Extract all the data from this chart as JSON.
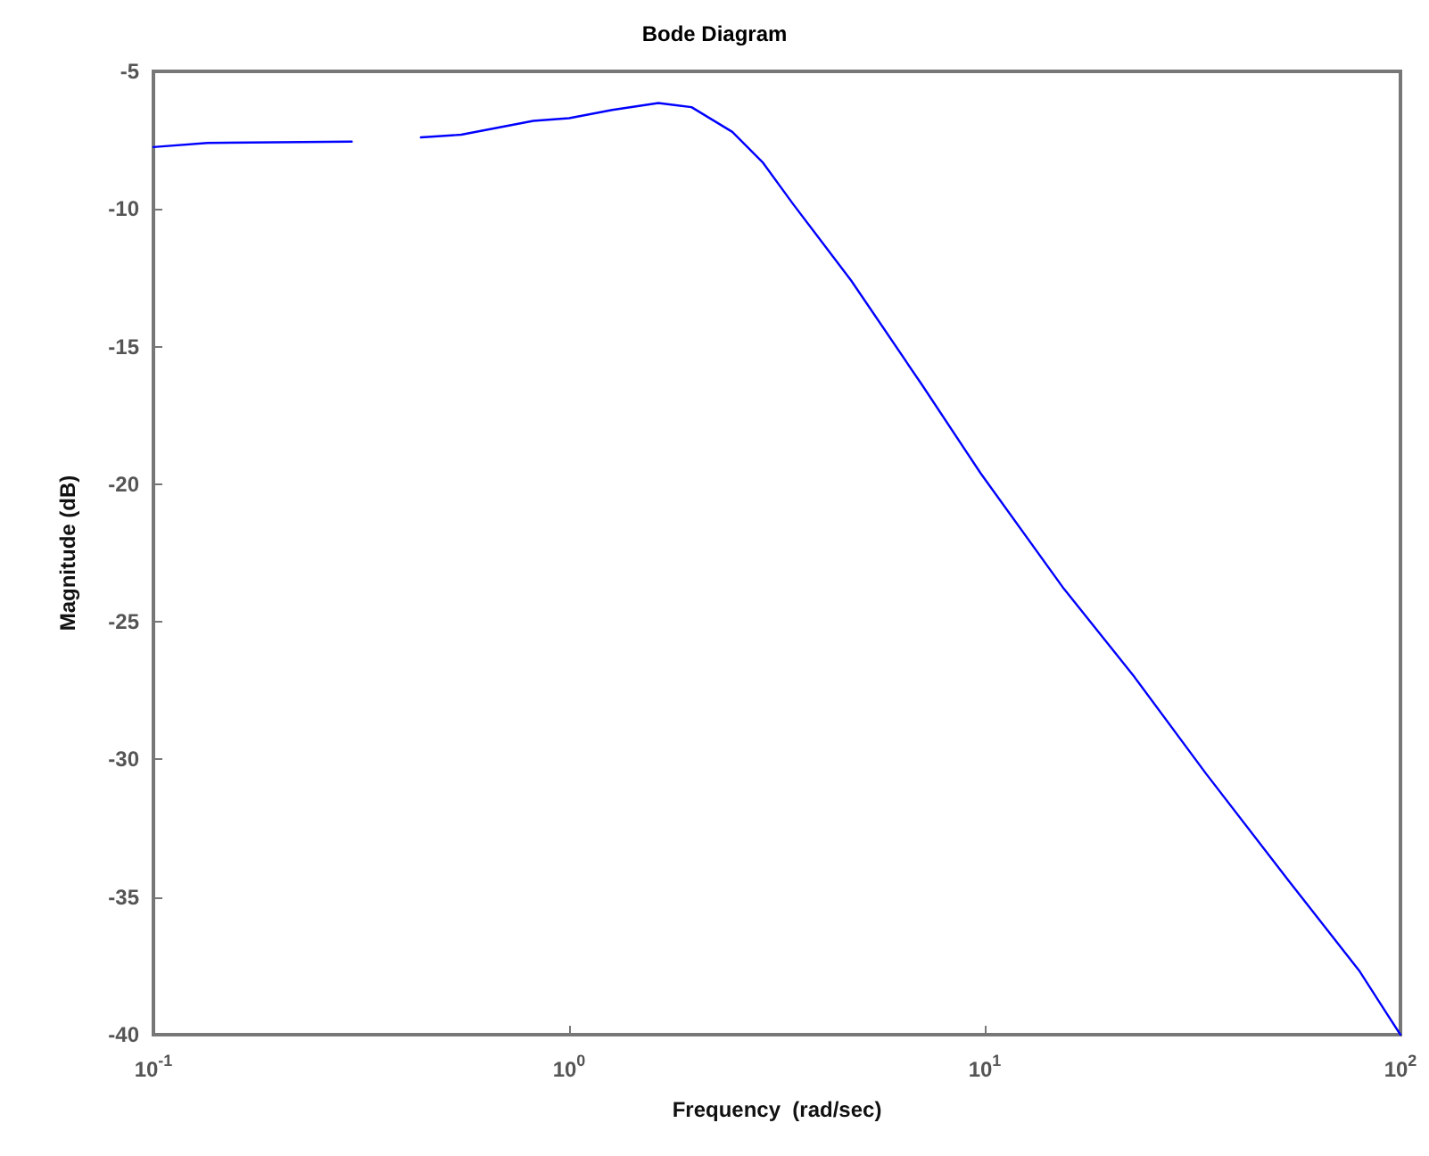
{
  "chart_data": {
    "type": "line",
    "title": "Bode Diagram",
    "xlabel": "Frequency  (rad/sec)",
    "ylabel": "Magnitude (dB)",
    "log": "x",
    "grid": false,
    "marker": "none",
    "line_style": "solid",
    "xlim": [
      0.1,
      100
    ],
    "xticks": [
      {
        "value": 0.1,
        "label": "10$^{-1}$"
      },
      {
        "value": 1,
        "label": "10$^{0}$"
      },
      {
        "value": 10,
        "label": "10$^{1}$"
      },
      {
        "value": 100,
        "label": "10$^{2}$"
      }
    ],
    "ylim": [
      -40,
      -5
    ],
    "yticks": [
      -40,
      -35,
      -30,
      -25,
      -20,
      -15,
      -10,
      -5
    ],
    "x": [
      0.1,
      0.135,
      0.3,
      0.36,
      0.44,
      0.55,
      0.82,
      1.0,
      1.27,
      1.64,
      1.97,
      2.47,
      2.92,
      3.45,
      4.77,
      7.07,
      9.77,
      15.5,
      22.9,
      34,
      53.8,
      79.8,
      93.3,
      100
    ],
    "series": [
      {
        "color": "#0000ff",
        "values": [
          -7.75,
          -7.6,
          -7.55,
          null,
          -7.4,
          -7.3,
          -6.8,
          -6.7,
          -6.4,
          -6.15,
          -6.3,
          -7.2,
          -8.3,
          -9.8,
          -12.6,
          -16.4,
          -19.6,
          -23.8,
          -27.0,
          -30.5,
          -34.4,
          -37.7,
          -39.3,
          -40
        ]
      }
    ]
  }
}
